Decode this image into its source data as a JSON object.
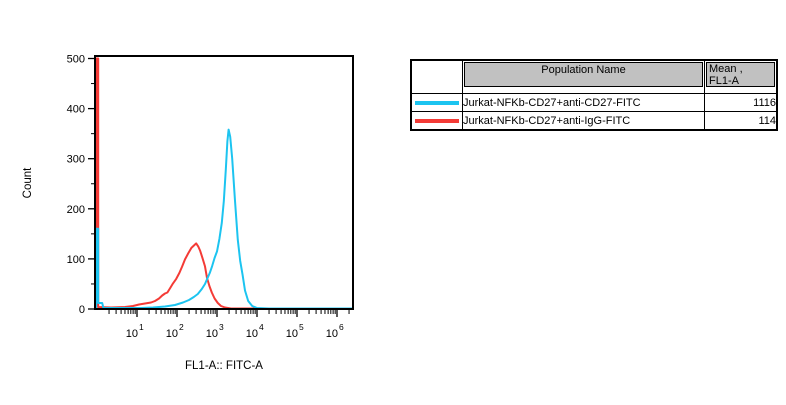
{
  "table": {
    "header": {
      "swatch": "",
      "population": "Population Name",
      "mean_line1": "Mean ,",
      "mean_line2": "FL1-A"
    },
    "header_bg": "#c1c1c1",
    "rows": [
      {
        "population": "Jurkat-NFKb-CD27+anti-CD27-FITC",
        "mean": "1116",
        "swatch_color": "#1CC4F0"
      },
      {
        "population": "Jurkat-NFKb-CD27+anti-IgG-FITC",
        "mean": "114",
        "swatch_color": "#F43B36"
      }
    ]
  },
  "chart_data": {
    "type": "line",
    "subtype": "flow-cytometry-histogram-overlay",
    "title": "",
    "xlabel": "FL1-A:: FITC-A",
    "ylabel": "Count",
    "x_scale": "log10",
    "xlim_log10": [
      -0.05,
      6.4
    ],
    "ylim": [
      0,
      505
    ],
    "y_ticks": [
      0,
      100,
      200,
      300,
      400,
      500
    ],
    "y_minor_ticks": [
      50,
      150,
      250,
      350,
      450
    ],
    "x_decades": [
      1,
      2,
      3,
      4,
      5,
      6
    ],
    "grid": false,
    "legend_position": "external-table-right",
    "series": [
      {
        "name": "Jurkat-NFKb-CD27+anti-CD27-FITC",
        "color": "#1CC4F0",
        "mean_fl1a": 1116,
        "peak": {
          "x_approx": 1800,
          "count": 360
        },
        "edge_spike_count": 160,
        "points_log10x_count": [
          [
            -0.02,
            0
          ],
          [
            -0.02,
            160
          ],
          [
            0.03,
            160
          ],
          [
            0.03,
            12
          ],
          [
            0.13,
            12
          ],
          [
            0.16,
            2
          ],
          [
            0.6,
            2
          ],
          [
            1.1,
            2
          ],
          [
            1.4,
            3
          ],
          [
            1.7,
            5
          ],
          [
            1.95,
            8
          ],
          [
            2.15,
            13
          ],
          [
            2.3,
            18
          ],
          [
            2.42,
            24
          ],
          [
            2.52,
            30
          ],
          [
            2.62,
            40
          ],
          [
            2.7,
            50
          ],
          [
            2.76,
            61
          ],
          [
            2.82,
            72
          ],
          [
            2.88,
            86
          ],
          [
            2.94,
            102
          ],
          [
            3.0,
            115
          ],
          [
            3.06,
            140
          ],
          [
            3.12,
            172
          ],
          [
            3.17,
            215
          ],
          [
            3.22,
            278
          ],
          [
            3.26,
            335
          ],
          [
            3.29,
            358
          ],
          [
            3.33,
            344
          ],
          [
            3.38,
            300
          ],
          [
            3.45,
            216
          ],
          [
            3.52,
            138
          ],
          [
            3.58,
            96
          ],
          [
            3.64,
            68
          ],
          [
            3.7,
            37
          ],
          [
            3.78,
            16
          ],
          [
            3.88,
            6
          ],
          [
            4.0,
            2
          ],
          [
            4.3,
            1
          ],
          [
            6.38,
            1
          ]
        ]
      },
      {
        "name": "Jurkat-NFKb-CD27+anti-IgG-FITC",
        "color": "#F43B36",
        "mean_fl1a": 114,
        "peak": {
          "x_approx": 300,
          "count": 131
        },
        "edge_spike_count": 500,
        "points_log10x_count": [
          [
            -0.02,
            0
          ],
          [
            -0.02,
            500
          ],
          [
            0.03,
            500
          ],
          [
            0.03,
            4
          ],
          [
            0.35,
            3
          ],
          [
            0.7,
            4
          ],
          [
            0.9,
            6
          ],
          [
            1.05,
            9
          ],
          [
            1.2,
            11
          ],
          [
            1.35,
            13
          ],
          [
            1.45,
            16
          ],
          [
            1.55,
            21
          ],
          [
            1.63,
            27
          ],
          [
            1.7,
            31
          ],
          [
            1.76,
            33
          ],
          [
            1.83,
            42
          ],
          [
            1.9,
            51
          ],
          [
            1.98,
            60
          ],
          [
            2.06,
            72
          ],
          [
            2.13,
            85
          ],
          [
            2.2,
            99
          ],
          [
            2.28,
            111
          ],
          [
            2.36,
            122
          ],
          [
            2.44,
            128
          ],
          [
            2.48,
            131
          ],
          [
            2.53,
            125
          ],
          [
            2.58,
            116
          ],
          [
            2.64,
            101
          ],
          [
            2.7,
            85
          ],
          [
            2.75,
            62
          ],
          [
            2.81,
            46
          ],
          [
            2.87,
            33
          ],
          [
            2.94,
            21
          ],
          [
            3.02,
            12
          ],
          [
            3.1,
            6
          ],
          [
            3.2,
            3
          ],
          [
            3.35,
            1
          ],
          [
            3.6,
            1
          ],
          [
            6.38,
            1
          ]
        ]
      }
    ]
  }
}
